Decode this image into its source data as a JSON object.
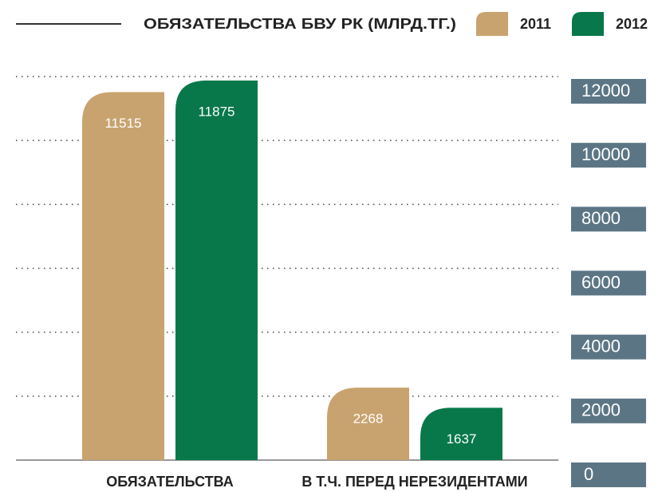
{
  "chart_data": {
    "type": "bar",
    "title": "ОБЯЗАТЕЛЬСТВА БВУ РК (МЛРД.ТГ.)",
    "categories": [
      "ОБЯЗАТЕЛЬСТВА",
      "В Т.Ч. ПЕРЕД НЕРЕЗИДЕНТАМИ"
    ],
    "series": [
      {
        "name": "2011",
        "color": "#c8a36f",
        "values": [
          11515,
          2268
        ]
      },
      {
        "name": "2012",
        "color": "#08784a",
        "values": [
          11875,
          1637
        ]
      }
    ],
    "ylim": [
      0,
      12000
    ],
    "yticks": [
      0,
      2000,
      4000,
      6000,
      8000,
      10000,
      12000
    ],
    "grid": true
  }
}
